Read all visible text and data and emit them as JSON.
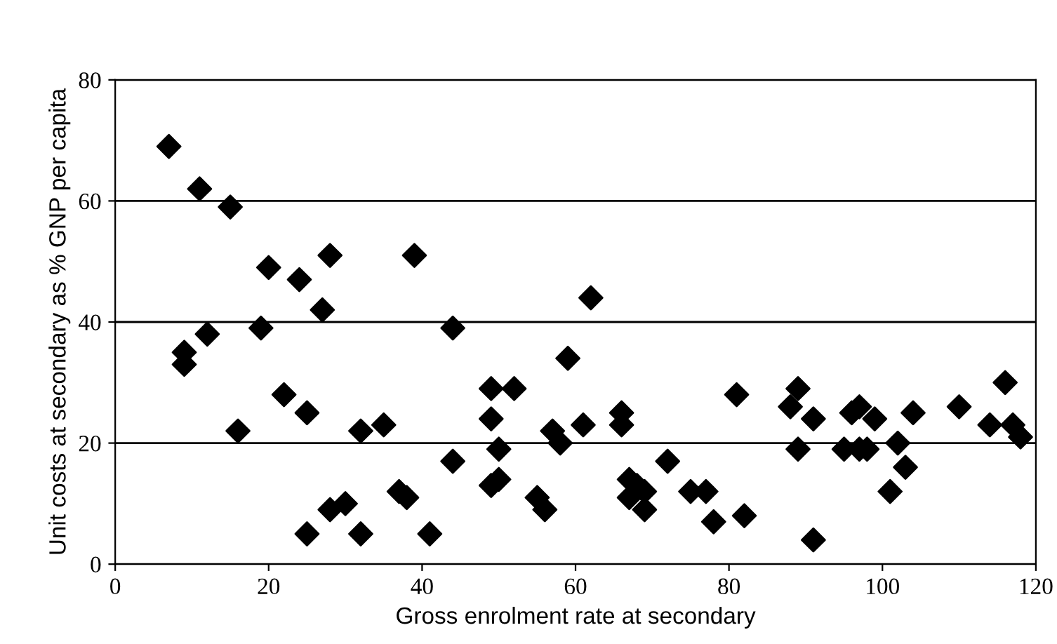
{
  "chart_data": {
    "type": "scatter",
    "xlabel": "Gross enrolment rate at secondary",
    "ylabel": "Unit costs at secondary as % GNP per capita",
    "x": [
      7,
      9,
      9,
      11,
      12,
      15,
      16,
      19,
      20,
      22,
      24,
      25,
      25,
      27,
      28,
      28,
      30,
      32,
      32,
      35,
      37,
      38,
      39,
      41,
      44,
      44,
      49,
      49,
      49,
      50,
      50,
      52,
      55,
      56,
      57,
      58,
      59,
      61,
      62,
      66,
      66,
      67,
      67,
      68,
      69,
      69,
      72,
      75,
      77,
      78,
      81,
      82,
      88,
      89,
      89,
      91,
      91,
      95,
      96,
      97,
      97,
      98,
      99,
      101,
      102,
      103,
      104,
      110,
      114,
      116,
      117,
      118
    ],
    "series": [
      {
        "color": "#000000",
        "values": [
          69,
          35,
          33,
          62,
          38,
          59,
          22,
          39,
          49,
          28,
          47,
          25,
          5,
          42,
          51,
          9,
          10,
          22,
          5,
          23,
          12,
          11,
          51,
          5,
          39,
          17,
          29,
          24,
          13,
          14,
          19,
          29,
          11,
          9,
          22,
          20,
          34,
          23,
          44,
          25,
          23,
          14,
          11,
          13,
          9,
          12,
          17,
          12,
          12,
          7,
          28,
          8,
          26,
          29,
          19,
          24,
          4,
          19,
          25,
          19,
          26,
          19,
          24,
          12,
          20,
          16,
          25,
          26,
          23,
          30,
          23,
          21
        ]
      }
    ],
    "xlim": [
      0,
      120
    ],
    "ylim": [
      0,
      80
    ],
    "xticks": [
      0,
      20,
      40,
      60,
      80,
      100,
      120
    ],
    "yticks": [
      0,
      20,
      40,
      60,
      80
    ],
    "grid": "y",
    "marker": "diamond",
    "legend": false
  }
}
